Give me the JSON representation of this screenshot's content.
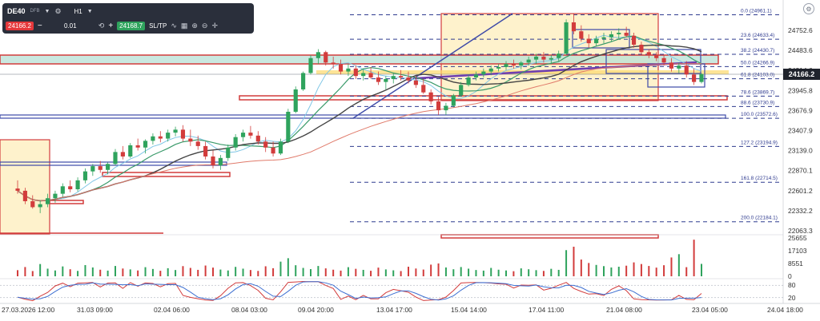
{
  "toolbar": {
    "symbol": "DE40",
    "symbol_sub": "DFB",
    "timeframe": "H1",
    "sell_price": "24166.2",
    "quantity": "0.01",
    "buy_price": "24168.7",
    "sl_tp_label": "SL/TP",
    "minus_label": "−",
    "plus_label": "+"
  },
  "current_price_label": "24166.2",
  "chart_data": {
    "type": "candlestick",
    "price_ticks": [
      24752.6,
      24483.6,
      24214.6,
      23945.8,
      23676.9,
      23407.9,
      23139.0,
      22870.1,
      22601.2,
      22332.2,
      22063.3
    ],
    "volume_ticks": [
      25655,
      17103,
      8551,
      0
    ],
    "oscillator_ticks": [
      80,
      20
    ],
    "time_labels": [
      "27.03.2026 12:00",
      "31.03 09:00",
      "02.04 06:00",
      "08.04 03:00",
      "09.04 20:00",
      "13.04 17:00",
      "15.04 14:00",
      "17.04 11:00",
      "21.04 08:00",
      "23.04 05:00",
      "24.04 18:00"
    ],
    "fib_levels": [
      {
        "label": "0.0 (24961.1)",
        "price": 24961.1
      },
      {
        "label": "23.6 (24633.4)",
        "price": 24633.4
      },
      {
        "label": "38.2 (24430.7)",
        "price": 24430.7
      },
      {
        "label": "50.0 (24266.9)",
        "price": 24266.9
      },
      {
        "label": "61.8 (24103.0)",
        "price": 24103.0
      },
      {
        "label": "78.6 (23869.7)",
        "price": 23869.7
      },
      {
        "label": "88.6 (23730.9)",
        "price": 23730.9
      },
      {
        "label": "100.0 (23572.6)",
        "price": 23572.6
      },
      {
        "label": "127.2 (23194.9)",
        "price": 23194.9
      },
      {
        "label": "161.8 (22714.5)",
        "price": 22714.5
      },
      {
        "label": "200.0 (22184.1)",
        "price": 22184.1
      }
    ],
    "candles": [
      [
        22630,
        22740,
        22560,
        22600
      ],
      [
        22600,
        22640,
        22420,
        22460
      ],
      [
        22460,
        22540,
        22360,
        22380
      ],
      [
        22380,
        22470,
        22300,
        22420
      ],
      [
        22420,
        22560,
        22380,
        22500
      ],
      [
        22500,
        22600,
        22440,
        22560
      ],
      [
        22560,
        22700,
        22520,
        22660
      ],
      [
        22660,
        22740,
        22580,
        22620
      ],
      [
        22620,
        22780,
        22590,
        22740
      ],
      [
        22740,
        22900,
        22700,
        22860
      ],
      [
        22860,
        22960,
        22800,
        22930
      ],
      [
        22930,
        23000,
        22840,
        22880
      ],
      [
        22880,
        22980,
        22820,
        22960
      ],
      [
        22960,
        23160,
        22940,
        23120
      ],
      [
        23120,
        23200,
        23020,
        23060
      ],
      [
        23060,
        23240,
        23040,
        23210
      ],
      [
        23210,
        23300,
        23140,
        23180
      ],
      [
        23180,
        23290,
        23100,
        23270
      ],
      [
        23270,
        23370,
        23220,
        23330
      ],
      [
        23330,
        23400,
        23250,
        23300
      ],
      [
        23300,
        23420,
        23260,
        23380
      ],
      [
        23380,
        23460,
        23330,
        23420
      ],
      [
        23420,
        23480,
        23260,
        23300
      ],
      [
        23300,
        23420,
        23200,
        23260
      ],
      [
        23260,
        23340,
        23150,
        23200
      ],
      [
        23200,
        23260,
        23020,
        23060
      ],
      [
        23060,
        23140,
        22900,
        22940
      ],
      [
        22940,
        23080,
        22880,
        23040
      ],
      [
        23040,
        23220,
        23000,
        23180
      ],
      [
        23180,
        23360,
        23140,
        23320
      ],
      [
        23320,
        23420,
        23260,
        23380
      ],
      [
        23380,
        23470,
        23300,
        23340
      ],
      [
        23340,
        23400,
        23220,
        23260
      ],
      [
        23260,
        23320,
        23120,
        23180
      ],
      [
        23180,
        23260,
        23060,
        23100
      ],
      [
        23100,
        23300,
        23080,
        23260
      ],
      [
        23260,
        23700,
        23240,
        23660
      ],
      [
        23660,
        24000,
        23640,
        23960
      ],
      [
        23960,
        24200,
        23940,
        24180
      ],
      [
        24180,
        24420,
        24160,
        24380
      ],
      [
        24380,
        24500,
        24300,
        24460
      ],
      [
        24460,
        24480,
        24280,
        24320
      ],
      [
        24320,
        24400,
        24240,
        24300
      ],
      [
        24300,
        24360,
        24160,
        24200
      ],
      [
        24200,
        24300,
        24140,
        24240
      ],
      [
        24240,
        24280,
        24100,
        24140
      ],
      [
        24140,
        24240,
        24080,
        24180
      ],
      [
        24180,
        24260,
        24100,
        24120
      ],
      [
        24120,
        24200,
        24020,
        24060
      ],
      [
        24060,
        24140,
        23960,
        24100
      ],
      [
        24100,
        24180,
        24040,
        24140
      ],
      [
        24140,
        24220,
        24080,
        24120
      ],
      [
        24120,
        24200,
        24040,
        24080
      ],
      [
        24080,
        24140,
        23980,
        24020
      ],
      [
        24020,
        24100,
        23900,
        23920
      ],
      [
        23920,
        23960,
        23760,
        23800
      ],
      [
        23800,
        23860,
        23620,
        23680
      ],
      [
        23680,
        23780,
        23620,
        23740
      ],
      [
        23740,
        23900,
        23720,
        23880
      ],
      [
        23880,
        24060,
        23860,
        24020
      ],
      [
        24020,
        24160,
        24000,
        24120
      ],
      [
        24120,
        24200,
        24080,
        24160
      ],
      [
        24160,
        24240,
        24120,
        24200
      ],
      [
        24200,
        24280,
        24150,
        24240
      ],
      [
        24240,
        24300,
        24200,
        24260
      ],
      [
        24260,
        24340,
        24220,
        24300
      ],
      [
        24300,
        24360,
        24240,
        24280
      ],
      [
        24280,
        24340,
        24230,
        24320
      ],
      [
        24320,
        24400,
        24280,
        24360
      ],
      [
        24360,
        24440,
        24300,
        24400
      ],
      [
        24400,
        24460,
        24320,
        24360
      ],
      [
        24360,
        24420,
        24300,
        24380
      ],
      [
        24380,
        24480,
        24340,
        24440
      ],
      [
        24440,
        24900,
        24420,
        24860
      ],
      [
        24860,
        24980,
        24700,
        24740
      ],
      [
        24740,
        24820,
        24600,
        24640
      ],
      [
        24640,
        24700,
        24520,
        24580
      ],
      [
        24580,
        24680,
        24540,
        24640
      ],
      [
        24640,
        24720,
        24580,
        24660
      ],
      [
        24660,
        24740,
        24600,
        24700
      ],
      [
        24700,
        24780,
        24640,
        24720
      ],
      [
        24720,
        24800,
        24660,
        24680
      ],
      [
        24680,
        24720,
        24520,
        24560
      ],
      [
        24560,
        24600,
        24420,
        24460
      ],
      [
        24460,
        24500,
        24380,
        24420
      ],
      [
        24420,
        24460,
        24340,
        24380
      ],
      [
        24380,
        24420,
        24280,
        24320
      ],
      [
        24320,
        24380,
        24200,
        24240
      ],
      [
        24240,
        24320,
        24180,
        24280
      ],
      [
        24280,
        24340,
        24120,
        24160
      ],
      [
        24160,
        24240,
        24020,
        24060
      ],
      [
        24060,
        24180,
        24040,
        24166
      ]
    ],
    "volume": [
      4100,
      6200,
      3500,
      8200,
      5100,
      3900,
      6600,
      4700,
      3600,
      7500,
      5900,
      4400,
      3800,
      6900,
      5200,
      4600,
      3900,
      6100,
      4900,
      3700,
      5400,
      4200,
      6800,
      5600,
      4300,
      7200,
      5800,
      4500,
      3900,
      6300,
      5100,
      4200,
      3600,
      6700,
      5400,
      9800,
      12100,
      7400,
      5600,
      4800,
      6900,
      5300,
      4400,
      3800,
      6100,
      5000,
      4300,
      3700,
      5800,
      4600,
      4000,
      3500,
      6400,
      5200,
      4500,
      7800,
      8600,
      5900,
      4700,
      6200,
      5100,
      4200,
      3800,
      5600,
      4400,
      3900,
      3400,
      5300,
      4700,
      4100,
      3600,
      5000,
      4300,
      17500,
      19800,
      11200,
      8900,
      7600,
      6800,
      5900,
      6400,
      7100,
      9300,
      8200,
      6900,
      5800,
      7400,
      12600,
      14800,
      6100,
      24500,
      8300
    ]
  }
}
